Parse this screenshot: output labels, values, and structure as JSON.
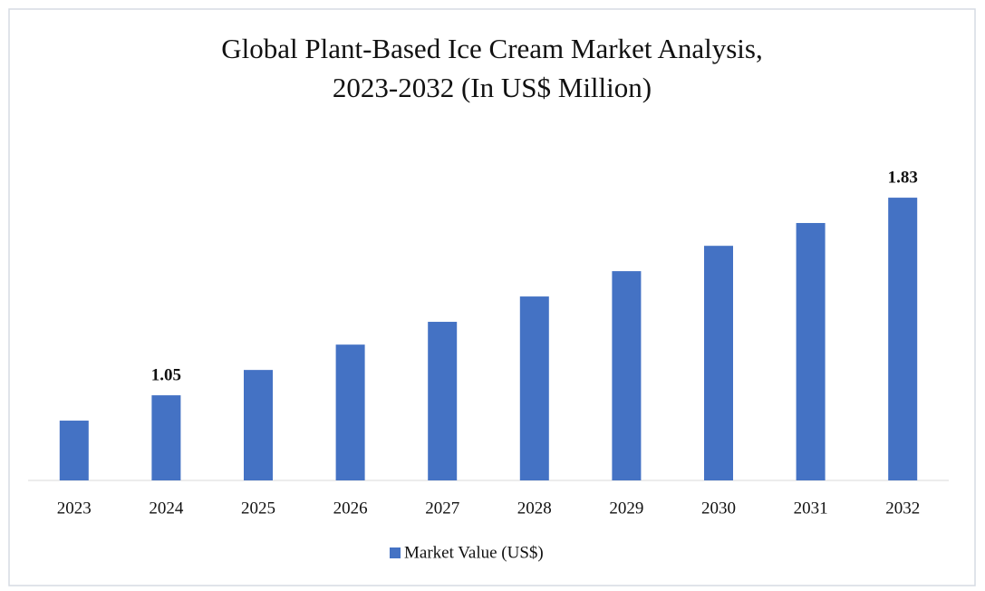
{
  "chart_data": {
    "type": "bar",
    "title": [
      "Global Plant-Based Ice Cream Market Analysis,",
      "2023-2032 (In US$ Million)"
    ],
    "categories": [
      "2023",
      "2024",
      "2025",
      "2026",
      "2027",
      "2028",
      "2029",
      "2030",
      "2031",
      "2032"
    ],
    "series": [
      {
        "name": "Market Value (US$)",
        "color": "#4472c4",
        "values": [
          0.95,
          1.05,
          1.15,
          1.25,
          1.34,
          1.44,
          1.54,
          1.64,
          1.73,
          1.83
        ],
        "value_labels": [
          null,
          "1.05",
          null,
          null,
          null,
          null,
          null,
          null,
          null,
          "1.83"
        ]
      }
    ],
    "ylim": [
      0.714,
      2.0
    ],
    "legend": "bottom"
  }
}
